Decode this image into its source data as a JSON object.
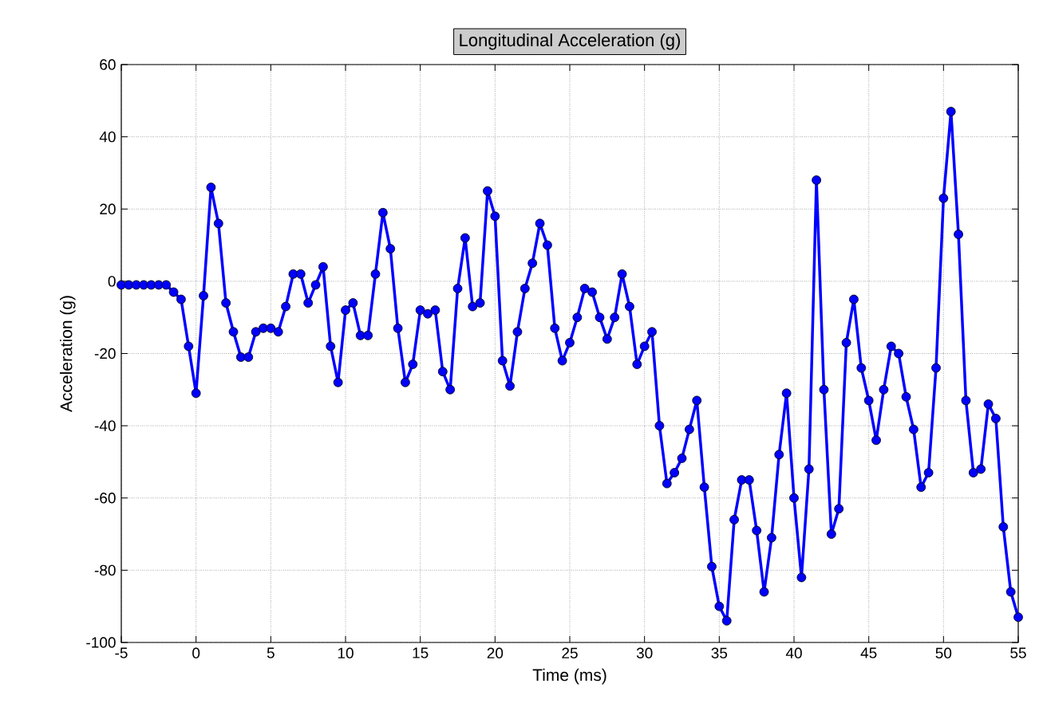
{
  "chart_data": {
    "type": "line",
    "title": "Longitudinal Acceleration (g)",
    "xlabel": "Time (ms)",
    "ylabel": "Acceleration (g)",
    "x": [
      -5,
      -4.5,
      -4,
      -3.5,
      -3,
      -2.5,
      -2,
      -1.5,
      -1,
      -0.5,
      0,
      0.5,
      1,
      1.5,
      2,
      2.5,
      3,
      3.5,
      4,
      4.5,
      5,
      5.5,
      6,
      6.5,
      7,
      7.5,
      8,
      8.5,
      9,
      9.5,
      10,
      10.5,
      11,
      11.5,
      12,
      12.5,
      13,
      13.5,
      14,
      14.5,
      15,
      15.5,
      16,
      16.5,
      17,
      17.5,
      18,
      18.5,
      19,
      19.5,
      20,
      20.5,
      21,
      21.5,
      22,
      22.5,
      23,
      23.5,
      24,
      24.5,
      25,
      25.5,
      26,
      26.5,
      27,
      27.5,
      28,
      28.5,
      29,
      29.5,
      30,
      30.5,
      31,
      31.5,
      32,
      32.5,
      33,
      33.5,
      34,
      34.5,
      35,
      35.5,
      36,
      36.5,
      37,
      37.5,
      38,
      38.5,
      39,
      39.5,
      40,
      40.5,
      41,
      41.5,
      42,
      42.5,
      43,
      43.5,
      44,
      44.5,
      45,
      45.5,
      46,
      46.5,
      47,
      47.5,
      48,
      48.5,
      49,
      49.5,
      50,
      50.5,
      51,
      51.5,
      52,
      52.5,
      53,
      53.5,
      54,
      54.5,
      55
    ],
    "series": [
      {
        "color": "#0000ff",
        "values": [
          -1,
          -1,
          -1,
          -1,
          -1,
          -1,
          -1,
          -3,
          -5,
          -18,
          -31,
          -4,
          26,
          16,
          -6,
          -14,
          -21,
          -21,
          -14,
          -13,
          -13,
          -14,
          -7,
          2,
          2,
          -6,
          -1,
          4,
          -18,
          -28,
          -8,
          -6,
          -15,
          -15,
          2,
          19,
          9,
          -13,
          -28,
          -23,
          -8,
          -9,
          -8,
          -25,
          -30,
          -2,
          12,
          -7,
          -6,
          25,
          18,
          -22,
          -29,
          -14,
          -2,
          5,
          16,
          10,
          -13,
          -22,
          -17,
          -10,
          -2,
          -3,
          -10,
          -16,
          -10,
          2,
          -7,
          -23,
          -18,
          -14,
          -40,
          -56,
          -53,
          -49,
          -41,
          -33,
          -57,
          -79,
          -90,
          -94,
          -66,
          -55,
          -55,
          -69,
          -86,
          -71,
          -48,
          -31,
          -60,
          -82,
          -52,
          28,
          -30,
          -70,
          -63,
          -17,
          -5,
          -24,
          -33,
          -44,
          -30,
          -18,
          -20,
          -32,
          -41,
          -57,
          -53,
          -24,
          23,
          47,
          13,
          -33,
          -53,
          -52,
          -34,
          -38,
          -68,
          -86,
          -93
        ]
      }
    ],
    "xlim": [
      -5,
      55
    ],
    "ylim": [
      -100,
      60
    ],
    "xticks": [
      -5,
      0,
      5,
      10,
      15,
      20,
      25,
      30,
      35,
      40,
      45,
      50,
      55
    ],
    "yticks": [
      -100,
      -80,
      -60,
      -40,
      -20,
      0,
      20,
      40,
      60
    ],
    "grid": true,
    "marker": "circle",
    "line_style": "solid"
  }
}
